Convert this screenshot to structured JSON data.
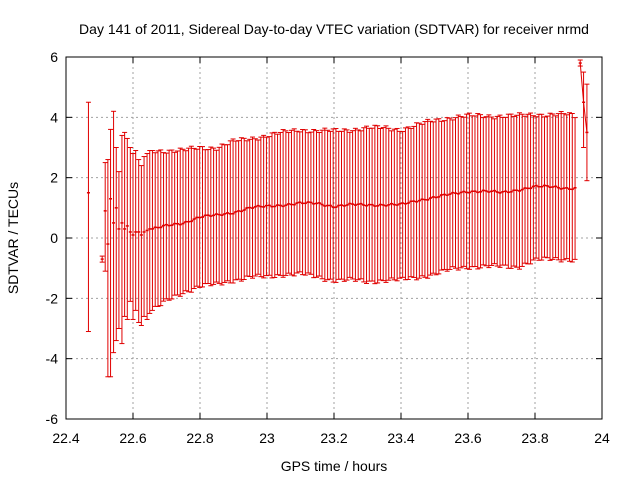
{
  "chart_data": {
    "type": "scatter",
    "style": "error-bars",
    "title": "Day 141 of 2011, Sidereal Day-to-day VTEC variation (SDTVAR) for receiver nrmd",
    "xlabel": "GPS time / hours",
    "ylabel": "SDTVAR / TECUs",
    "xlim": [
      22.4,
      24
    ],
    "ylim": [
      -6,
      6
    ],
    "x_ticks": [
      "22.4",
      "22.6",
      "22.8",
      "23",
      "23.2",
      "23.4",
      "23.6",
      "23.8",
      "24"
    ],
    "y_ticks": [
      "6",
      "4",
      "2",
      "0",
      "-2",
      "-4",
      "-6"
    ],
    "grid": true,
    "legend": "none",
    "series_color": "#e00000",
    "sparse_points": [
      {
        "x": 22.467,
        "y": 1.5,
        "ylo": -3.1,
        "yhi": 4.5
      },
      {
        "x": 22.508,
        "y": -0.7,
        "ylo": -0.8,
        "yhi": -0.6
      },
      {
        "x": 22.517,
        "y": 0.9,
        "ylo": -1.1,
        "yhi": 2.5
      },
      {
        "x": 22.525,
        "y": -0.2,
        "ylo": -4.6,
        "yhi": 2.6
      },
      {
        "x": 22.533,
        "y": 1.3,
        "ylo": -4.6,
        "yhi": 3.6
      },
      {
        "x": 22.542,
        "y": 0.5,
        "ylo": -3.8,
        "yhi": 4.2
      },
      {
        "x": 22.55,
        "y": 1.0,
        "ylo": -3.4,
        "yhi": 3.0
      },
      {
        "x": 22.558,
        "y": 0.3,
        "ylo": -3.0,
        "yhi": 2.2
      },
      {
        "x": 22.567,
        "y": 0.5,
        "ylo": -3.5,
        "yhi": 3.4
      },
      {
        "x": 22.575,
        "y": 0.3,
        "ylo": -2.6,
        "yhi": 3.5
      },
      {
        "x": 22.583,
        "y": 0.4,
        "ylo": -2.7,
        "yhi": 3.3
      },
      {
        "x": 22.592,
        "y": 0.2,
        "ylo": -2.1,
        "yhi": 3.0
      },
      {
        "x": 22.6,
        "y": 0.1,
        "ylo": -2.7,
        "yhi": 2.8
      },
      {
        "x": 22.608,
        "y": 0.2,
        "ylo": -2.4,
        "yhi": 2.9
      },
      {
        "x": 22.617,
        "y": 0.2,
        "ylo": -2.8,
        "yhi": 2.6
      },
      {
        "x": 22.625,
        "y": 0.1,
        "ylo": -2.9,
        "yhi": 2.4
      },
      {
        "x": 22.633,
        "y": 0.2,
        "ylo": -2.6,
        "yhi": 2.7
      },
      {
        "x": 22.642,
        "y": 0.25,
        "ylo": -2.7,
        "yhi": 2.8
      },
      {
        "x": 22.65,
        "y": 0.3,
        "ylo": -2.5,
        "yhi": 2.9
      }
    ],
    "dense_trend": {
      "x_start": 22.658,
      "x_end": 23.925,
      "step": 0.0083,
      "points": [
        {
          "x": 22.658,
          "y": 0.3,
          "ylo": -2.4,
          "yhi": 2.9
        },
        {
          "x": 22.7,
          "y": 0.4,
          "ylo": -2.1,
          "yhi": 2.9
        },
        {
          "x": 22.75,
          "y": 0.5,
          "ylo": -1.8,
          "yhi": 2.9
        },
        {
          "x": 22.8,
          "y": 0.7,
          "ylo": -1.6,
          "yhi": 3.0
        },
        {
          "x": 22.85,
          "y": 0.75,
          "ylo": -1.55,
          "yhi": 3.0
        },
        {
          "x": 22.9,
          "y": 0.85,
          "ylo": -1.4,
          "yhi": 3.2
        },
        {
          "x": 22.95,
          "y": 1.0,
          "ylo": -1.3,
          "yhi": 3.3
        },
        {
          "x": 23.0,
          "y": 1.05,
          "ylo": -1.3,
          "yhi": 3.4
        },
        {
          "x": 23.05,
          "y": 1.1,
          "ylo": -1.2,
          "yhi": 3.5
        },
        {
          "x": 23.1,
          "y": 1.15,
          "ylo": -1.2,
          "yhi": 3.6
        },
        {
          "x": 23.15,
          "y": 1.15,
          "ylo": -1.3,
          "yhi": 3.55
        },
        {
          "x": 23.2,
          "y": 1.05,
          "ylo": -1.4,
          "yhi": 3.55
        },
        {
          "x": 23.25,
          "y": 1.1,
          "ylo": -1.4,
          "yhi": 3.6
        },
        {
          "x": 23.3,
          "y": 1.1,
          "ylo": -1.45,
          "yhi": 3.65
        },
        {
          "x": 23.35,
          "y": 1.1,
          "ylo": -1.4,
          "yhi": 3.65
        },
        {
          "x": 23.4,
          "y": 1.1,
          "ylo": -1.4,
          "yhi": 3.6
        },
        {
          "x": 23.45,
          "y": 1.25,
          "ylo": -1.3,
          "yhi": 3.75
        },
        {
          "x": 23.5,
          "y": 1.35,
          "ylo": -1.2,
          "yhi": 3.9
        },
        {
          "x": 23.55,
          "y": 1.45,
          "ylo": -1.05,
          "yhi": 4.0
        },
        {
          "x": 23.6,
          "y": 1.55,
          "ylo": -0.95,
          "yhi": 4.05
        },
        {
          "x": 23.65,
          "y": 1.55,
          "ylo": -0.95,
          "yhi": 4.05
        },
        {
          "x": 23.7,
          "y": 1.5,
          "ylo": -0.95,
          "yhi": 4.05
        },
        {
          "x": 23.75,
          "y": 1.6,
          "ylo": -0.95,
          "yhi": 4.05
        },
        {
          "x": 23.8,
          "y": 1.7,
          "ylo": -0.75,
          "yhi": 4.1
        },
        {
          "x": 23.85,
          "y": 1.7,
          "ylo": -0.7,
          "yhi": 4.1
        },
        {
          "x": 23.9,
          "y": 1.65,
          "ylo": -0.7,
          "yhi": 4.1
        },
        {
          "x": 23.925,
          "y": 1.65,
          "ylo": -0.75,
          "yhi": 4.0
        }
      ]
    },
    "tail_points": [
      {
        "x": 23.935,
        "y": 5.8,
        "ylo": 5.7,
        "yhi": 5.9
      },
      {
        "x": 23.945,
        "y": 4.5,
        "ylo": 3.0,
        "yhi": 5.5
      },
      {
        "x": 23.955,
        "y": 3.5,
        "ylo": 1.9,
        "yhi": 5.1
      }
    ]
  }
}
